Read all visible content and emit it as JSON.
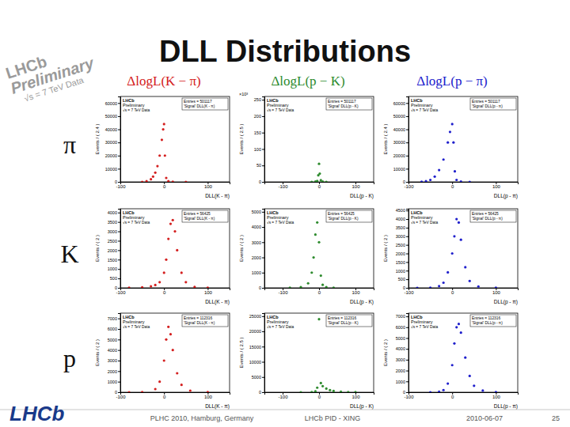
{
  "slide": {
    "title": "DLL Distributions",
    "watermark": [
      "LHCb",
      "Preliminary",
      "√s = 7 TeV Data"
    ],
    "column_headers": [
      "ΔlogL(K − π)",
      "ΔlogL(p − K)",
      "ΔlogL(p − π)"
    ],
    "row_labels": [
      "π",
      "K",
      "p"
    ],
    "logo": "LHCb",
    "footer": [
      "PLHC 2010, Hamburg, Germany",
      "LHCb PID - XING",
      "2010-06-07",
      "25"
    ]
  },
  "chart_data": [
    {
      "type": "scatter",
      "marker": "circle",
      "color": "#d42020",
      "xlabel": "DLL(K - π)",
      "ylabel": "Events / ( 2.4 )",
      "annotations": [
        "LHCb",
        "Preliminary",
        "√s = 7 TeV Data"
      ],
      "stats": [
        "Entries = 501117",
        "'Signal' DLL(K - π)"
      ],
      "x": [
        -50,
        -40,
        -30,
        -25,
        -20,
        -15,
        -10,
        -5,
        -2,
        0,
        2,
        5,
        10,
        20,
        50
      ],
      "values": [
        0,
        500,
        2000,
        4000,
        7000,
        12000,
        20000,
        32000,
        40000,
        44000,
        20000,
        3000,
        500,
        100,
        0
      ],
      "xlim": [
        -100,
        150
      ],
      "xticks": [
        -100,
        0,
        100
      ],
      "ylim": [
        0,
        65000
      ],
      "yticks": [
        0,
        10000,
        20000,
        30000,
        40000,
        50000,
        60000
      ]
    },
    {
      "type": "scatter",
      "marker": "circle",
      "color": "#2e8b2e",
      "xlabel": "DLL(p - K)",
      "ylabel": "Events / ( 2.5 )",
      "y_multiplier": "×10³",
      "annotations": [
        "LHCb",
        "Preliminary",
        "√s = 7 TeV Data"
      ],
      "stats": [
        "Entries = 501117",
        "'Signal' DLL(p - K)"
      ],
      "x": [
        -20,
        -10,
        -5,
        -2,
        0,
        2,
        5,
        10,
        20
      ],
      "values": [
        0,
        1,
        3,
        20,
        55,
        25,
        5,
        1,
        0
      ],
      "xlim": [
        -150,
        150
      ],
      "xticks": [
        -100,
        0,
        100
      ],
      "ylim": [
        0,
        260
      ],
      "yticks": [
        0,
        50,
        100,
        150,
        200,
        250
      ]
    },
    {
      "type": "scatter",
      "marker": "circle",
      "color": "#2020cc",
      "xlabel": "DLL(p - π)",
      "ylabel": "Events / ( 2.4 )",
      "annotations": [
        "LHCb",
        "Preliminary",
        "√s = 7 TeV Data"
      ],
      "stats": [
        "Entries = 501117",
        "'Signal' DLL(p - π)"
      ],
      "x": [
        -70,
        -60,
        -50,
        -40,
        -30,
        -20,
        -10,
        -5,
        0,
        3,
        6,
        10,
        20,
        40
      ],
      "values": [
        100,
        500,
        1500,
        4000,
        9000,
        17000,
        30000,
        38000,
        44000,
        30000,
        8000,
        1500,
        200,
        0
      ],
      "xlim": [
        -100,
        150
      ],
      "xticks": [
        -100,
        0,
        100
      ],
      "ylim": [
        0,
        65000
      ],
      "yticks": [
        0,
        10000,
        20000,
        30000,
        40000,
        50000,
        60000
      ]
    },
    {
      "type": "scatter",
      "marker": "circle",
      "color": "#d42020",
      "xlabel": "DLL(K - π)",
      "ylabel": "Events / ( 2 )",
      "annotations": [
        "LHCb",
        "Preliminary",
        "√s = 7 TeV Data"
      ],
      "stats": [
        "Entries = 56425",
        "'Signal' DLL(K - π)"
      ],
      "x": [
        -80,
        -50,
        -30,
        -20,
        -10,
        0,
        5,
        10,
        15,
        20,
        25,
        30,
        40,
        50,
        70,
        100
      ],
      "values": [
        10,
        30,
        80,
        150,
        300,
        800,
        1500,
        2600,
        3400,
        3600,
        3000,
        2000,
        800,
        300,
        50,
        10
      ],
      "xlim": [
        -100,
        150
      ],
      "xticks": [
        -100,
        0,
        100
      ],
      "ylim": [
        0,
        4200
      ],
      "yticks": [
        0,
        500,
        1000,
        1500,
        2000,
        2500,
        3000,
        3500,
        4000
      ]
    },
    {
      "type": "scatter",
      "marker": "circle",
      "color": "#2e8b2e",
      "xlabel": "DLL(p - K)",
      "ylabel": "Events / ( 2 )",
      "annotations": [
        "LHCb",
        "Preliminary",
        "√s = 7 TeV Data"
      ],
      "stats": [
        "Entries = 56425",
        "'Signal' DLL(p - K)"
      ],
      "x": [
        -80,
        -50,
        -30,
        -20,
        -15,
        -10,
        -5,
        0,
        5,
        10,
        20,
        40
      ],
      "values": [
        10,
        50,
        300,
        1000,
        2000,
        3500,
        4300,
        3000,
        800,
        200,
        50,
        10
      ],
      "xlim": [
        -150,
        150
      ],
      "xticks": [
        -100,
        0,
        100
      ],
      "ylim": [
        0,
        5200
      ],
      "yticks": [
        0,
        1000,
        2000,
        3000,
        4000,
        5000
      ]
    },
    {
      "type": "scatter",
      "marker": "circle",
      "color": "#2020cc",
      "xlabel": "DLL(p - π)",
      "ylabel": "Events / ( 2 )",
      "annotations": [
        "LHCb",
        "Preliminary",
        "√s = 7 TeV Data"
      ],
      "stats": [
        "Entries = 56425",
        "'Signal' DLL(p - π)"
      ],
      "x": [
        -80,
        -50,
        -30,
        -20,
        -10,
        0,
        5,
        10,
        15,
        20,
        30,
        40,
        60,
        100
      ],
      "values": [
        0,
        10,
        100,
        300,
        900,
        2000,
        3000,
        4000,
        3800,
        2800,
        1200,
        400,
        80,
        10
      ],
      "xlim": [
        -100,
        150
      ],
      "xticks": [
        -100,
        0,
        100
      ],
      "ylim": [
        0,
        4600
      ],
      "yticks": [
        0,
        500,
        1000,
        1500,
        2000,
        2500,
        3000,
        3500,
        4000,
        4500
      ]
    },
    {
      "type": "scatter",
      "marker": "circle",
      "color": "#d42020",
      "xlabel": "DLL(K - π)",
      "ylabel": "Events / ( 2 )",
      "annotations": [
        "LHCb",
        "Preliminary",
        "√s = 7 TeV Data"
      ],
      "stats": [
        "Entries = 112316",
        "'Signal' DLL(K - π)"
      ],
      "x": [
        -80,
        -50,
        -20,
        -10,
        0,
        5,
        10,
        15,
        20,
        30,
        40,
        60,
        100
      ],
      "values": [
        0,
        20,
        300,
        1000,
        3000,
        5000,
        6200,
        5500,
        4000,
        1800,
        700,
        150,
        20
      ],
      "xlim": [
        -100,
        150
      ],
      "xticks": [
        -100,
        0,
        100
      ],
      "ylim": [
        0,
        7500
      ],
      "yticks": [
        0,
        1000,
        2000,
        3000,
        4000,
        5000,
        6000,
        7000
      ]
    },
    {
      "type": "scatter",
      "marker": "circle",
      "color": "#2e8b2e",
      "xlabel": "DLL(p - K)",
      "ylabel": "Events / ( 2.5 )",
      "annotations": [
        "LHCb",
        "Preliminary",
        "√s = 7 TeV Data"
      ],
      "stats": [
        "Entries = 112316",
        "'Signal' DLL(p - K)"
      ],
      "x": [
        -50,
        -20,
        -10,
        -5,
        0,
        5,
        10,
        20,
        30,
        40,
        60,
        80,
        100
      ],
      "values": [
        0,
        50,
        300,
        1500,
        24000,
        3000,
        2000,
        1200,
        700,
        400,
        150,
        50,
        20
      ],
      "xlim": [
        -150,
        150
      ],
      "xticks": [
        -100,
        0,
        100
      ],
      "ylim": [
        0,
        26000
      ],
      "yticks": [
        0,
        5000,
        10000,
        15000,
        20000,
        25000
      ]
    },
    {
      "type": "scatter",
      "marker": "circle",
      "color": "#2020cc",
      "xlabel": "DLL(p - π)",
      "ylabel": "Events / ( 2 )",
      "annotations": [
        "LHCb",
        "Preliminary",
        "√s = 7 TeV Data"
      ],
      "stats": [
        "Entries = 112316",
        "'Signal' DLL(p - π)"
      ],
      "x": [
        -50,
        -30,
        -20,
        -10,
        0,
        5,
        10,
        15,
        20,
        30,
        40,
        50,
        70,
        100
      ],
      "values": [
        0,
        50,
        200,
        800,
        2500,
        4500,
        6000,
        6300,
        5500,
        3200,
        1500,
        600,
        150,
        20
      ],
      "xlim": [
        -100,
        150
      ],
      "xticks": [
        -100,
        0,
        100
      ],
      "ylim": [
        0,
        7300
      ],
      "yticks": [
        0,
        1000,
        2000,
        3000,
        4000,
        5000,
        6000,
        7000
      ]
    }
  ]
}
